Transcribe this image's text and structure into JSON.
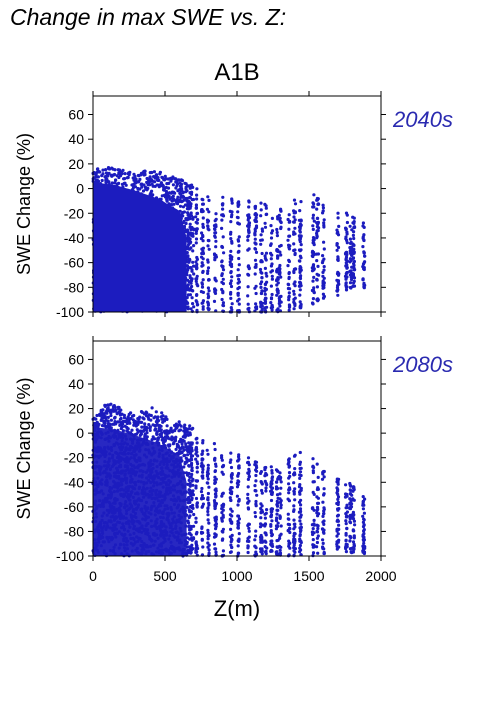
{
  "page_title": "Change in max SWE vs. Z:",
  "colors": {
    "points": "#1c1cbf",
    "axis": "#000000",
    "panel_label": "#2a2ab0"
  },
  "chart_data": [
    {
      "type": "scatter",
      "title": "A1B",
      "panel_label": "2040s",
      "ylabel": "SWE Change (%)",
      "xlabel": "",
      "xlim": [
        0,
        2000
      ],
      "ylim": [
        -100,
        75
      ],
      "xticks": [
        0,
        500,
        1000,
        1500,
        2000
      ],
      "yticks": [
        -100,
        -80,
        -60,
        -40,
        -20,
        0,
        20,
        40,
        60
      ],
      "show_xtick_labels": false,
      "envelope_x": [
        0,
        100,
        200,
        300,
        400,
        500,
        600,
        700,
        800,
        900,
        1000,
        1100,
        1200,
        1300,
        1400,
        1500,
        1600,
        1700,
        1800,
        1900
      ],
      "envelope_upper": [
        15,
        18,
        15,
        12,
        16,
        12,
        8,
        2,
        -2,
        -5,
        -8,
        -10,
        -12,
        -15,
        -8,
        0,
        -10,
        -18,
        -20,
        -30
      ],
      "envelope_lower": [
        -100,
        -100,
        -100,
        -100,
        -100,
        -100,
        -100,
        -100,
        -100,
        -100,
        -100,
        -100,
        -100,
        -100,
        -98,
        -95,
        -90,
        -88,
        -80,
        -85
      ],
      "x_extent": [
        0,
        1900
      ]
    },
    {
      "type": "scatter",
      "title": "",
      "panel_label": "2080s",
      "ylabel": "SWE Change (%)",
      "xlabel": "Z(m)",
      "xlim": [
        0,
        2000
      ],
      "ylim": [
        -100,
        75
      ],
      "xticks": [
        0,
        500,
        1000,
        1500,
        2000
      ],
      "yticks": [
        -100,
        -80,
        -60,
        -40,
        -20,
        0,
        20,
        40,
        60
      ],
      "show_xtick_labels": true,
      "envelope_x": [
        0,
        100,
        200,
        300,
        400,
        500,
        600,
        700,
        800,
        900,
        1000,
        1100,
        1200,
        1300,
        1400,
        1500,
        1600,
        1700,
        1800,
        1900
      ],
      "envelope_upper": [
        12,
        25,
        20,
        15,
        22,
        15,
        10,
        5,
        -5,
        -10,
        -15,
        -20,
        -25,
        -30,
        -15,
        -15,
        -30,
        -35,
        -40,
        -45
      ],
      "envelope_lower": [
        -100,
        -100,
        -100,
        -100,
        -100,
        -100,
        -100,
        -100,
        -100,
        -100,
        -100,
        -100,
        -100,
        -100,
        -100,
        -100,
        -100,
        -95,
        -98,
        -98
      ],
      "x_extent": [
        0,
        1900
      ]
    }
  ]
}
